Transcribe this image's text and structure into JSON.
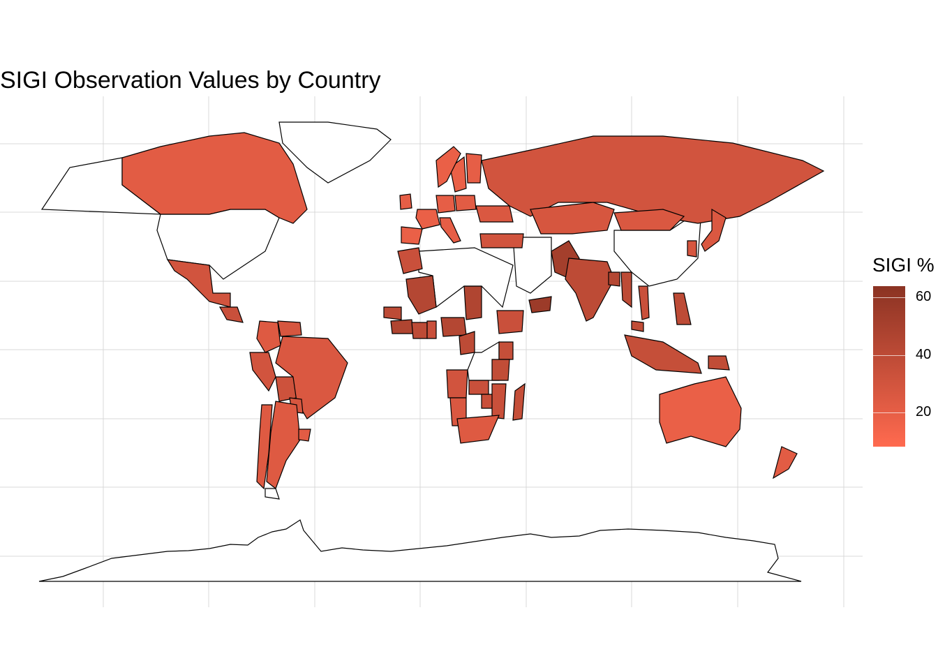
{
  "title": "SIGI Observation Values by Country",
  "legend": {
    "title": "SIGI %",
    "ticks": [
      "60",
      "40",
      "20"
    ],
    "tick_values": [
      60,
      40,
      20
    ],
    "range": [
      8,
      64
    ],
    "low_color": "#ff6a4f",
    "high_color": "#8b3323"
  },
  "map": {
    "na_color": "#ffffff",
    "border_color": "#000000",
    "grid": true,
    "grid_color": "#d9d9d9"
  },
  "chart_data": {
    "type": "choropleth",
    "title": "SIGI Observation Values by Country",
    "legend_title": "SIGI %",
    "legend_ticks": [
      20,
      40,
      60
    ],
    "scale_range": [
      8,
      64
    ],
    "countries": [
      {
        "name": "Canada",
        "value": 22
      },
      {
        "name": "Mexico",
        "value": 30
      },
      {
        "name": "Guatemala",
        "value": 34
      },
      {
        "name": "Colombia",
        "value": 24
      },
      {
        "name": "Venezuela",
        "value": 28
      },
      {
        "name": "Peru",
        "value": 30
      },
      {
        "name": "Bolivia",
        "value": 32
      },
      {
        "name": "Brazil",
        "value": 26
      },
      {
        "name": "Paraguay",
        "value": 28
      },
      {
        "name": "Argentina",
        "value": 24
      },
      {
        "name": "Chile",
        "value": 24
      },
      {
        "name": "Uruguay",
        "value": 22
      },
      {
        "name": "United Kingdom",
        "value": 20
      },
      {
        "name": "France",
        "value": 18
      },
      {
        "name": "Spain",
        "value": 18
      },
      {
        "name": "Italy",
        "value": 20
      },
      {
        "name": "Germany",
        "value": 20
      },
      {
        "name": "Sweden",
        "value": 18
      },
      {
        "name": "Norway",
        "value": 18
      },
      {
        "name": "Finland",
        "value": 20
      },
      {
        "name": "Poland",
        "value": 22
      },
      {
        "name": "Ukraine",
        "value": 26
      },
      {
        "name": "Turkey",
        "value": 30
      },
      {
        "name": "Russia",
        "value": 30
      },
      {
        "name": "Kazakhstan",
        "value": 28
      },
      {
        "name": "Mongolia",
        "value": 26
      },
      {
        "name": "Morocco",
        "value": 34
      },
      {
        "name": "Mali",
        "value": 44
      },
      {
        "name": "Senegal",
        "value": 40
      },
      {
        "name": "Guinea",
        "value": 46
      },
      {
        "name": "Cote d'Ivoire",
        "value": 40
      },
      {
        "name": "Ghana",
        "value": 34
      },
      {
        "name": "Nigeria",
        "value": 44
      },
      {
        "name": "Cameroon",
        "value": 40
      },
      {
        "name": "Chad",
        "value": 46
      },
      {
        "name": "Ethiopia",
        "value": 34
      },
      {
        "name": "Yemen",
        "value": 56
      },
      {
        "name": "Kenya",
        "value": 36
      },
      {
        "name": "Tanzania",
        "value": 38
      },
      {
        "name": "Angola",
        "value": 30
      },
      {
        "name": "Zambia",
        "value": 34
      },
      {
        "name": "Zimbabwe",
        "value": 34
      },
      {
        "name": "Mozambique",
        "value": 34
      },
      {
        "name": "Madagascar",
        "value": 36
      },
      {
        "name": "Namibia",
        "value": 26
      },
      {
        "name": "South Africa",
        "value": 24
      },
      {
        "name": "Pakistan",
        "value": 52
      },
      {
        "name": "India",
        "value": 40
      },
      {
        "name": "Bangladesh",
        "value": 44
      },
      {
        "name": "Myanmar",
        "value": 40
      },
      {
        "name": "Viet Nam",
        "value": 34
      },
      {
        "name": "Malaysia",
        "value": 38
      },
      {
        "name": "Philippines",
        "value": 40
      },
      {
        "name": "Indonesia",
        "value": 36
      },
      {
        "name": "Papua New Guinea",
        "value": 38
      },
      {
        "name": "Japan",
        "value": 26
      },
      {
        "name": "Republic of Korea",
        "value": 28
      },
      {
        "name": "Australia",
        "value": 18
      },
      {
        "name": "New Zealand",
        "value": 22
      }
    ]
  }
}
